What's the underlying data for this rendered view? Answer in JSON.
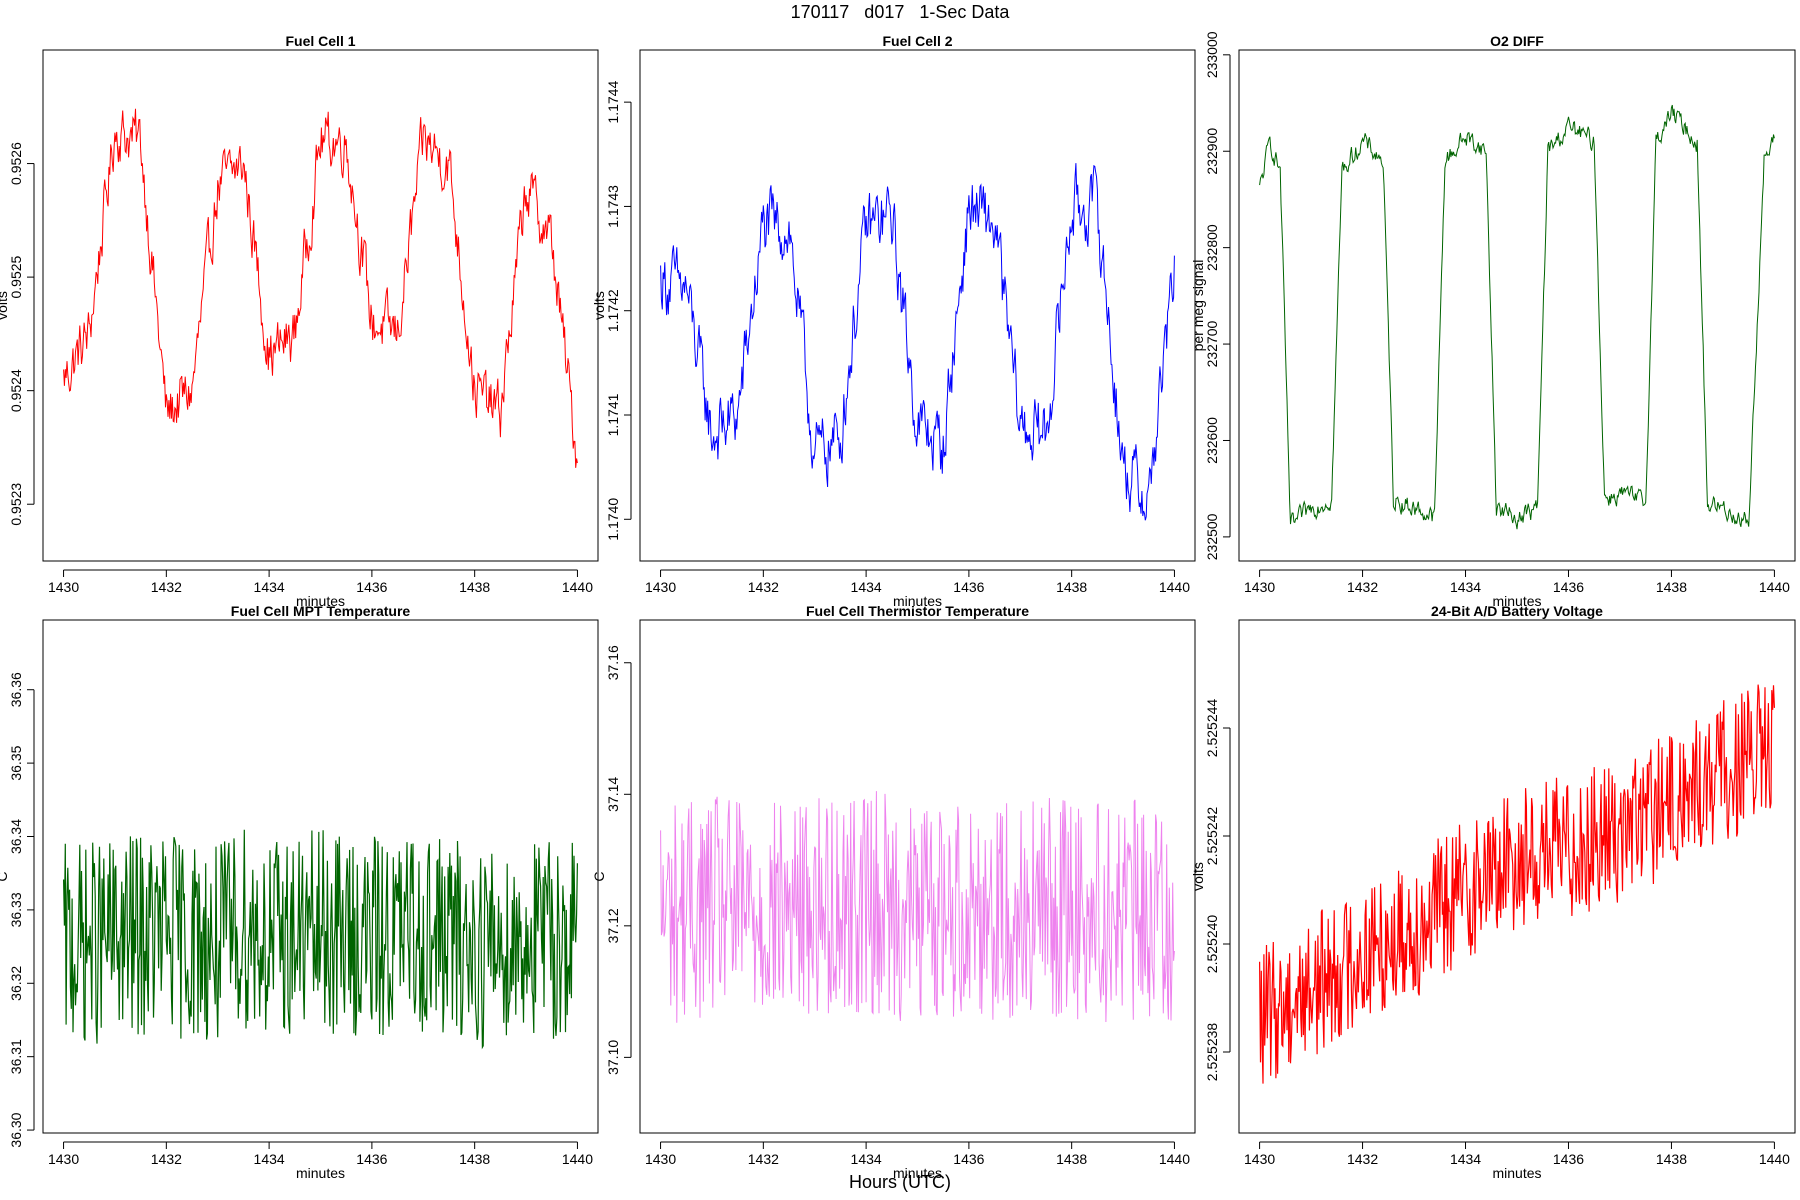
{
  "page": {
    "title": "170117   d017   1-Sec Data",
    "bottom_label": "Hours (UTC)"
  },
  "chart_data": [
    {
      "id": "fuel-cell-1",
      "type": "line",
      "title": "Fuel Cell 1",
      "xlabel": "minutes",
      "ylabel": "volts",
      "color": "#ff0000",
      "xlim": [
        1429.6,
        1440.4
      ],
      "ylim": [
        0.95225,
        0.9527
      ],
      "xticks": [
        1430,
        1432,
        1434,
        1436,
        1438,
        1440
      ],
      "yticks": [
        0.9523,
        0.9524,
        0.9525,
        0.9526
      ],
      "ytick_labels": [
        "0.9523",
        "0.9524",
        "0.9525",
        "0.9526"
      ],
      "x": [
        1430.0,
        1430.5,
        1431.0,
        1431.5,
        1432.0,
        1432.5,
        1433.0,
        1433.5,
        1434.0,
        1434.5,
        1435.0,
        1435.5,
        1436.0,
        1436.5,
        1437.0,
        1437.5,
        1438.0,
        1438.5,
        1439.0,
        1439.5,
        1440.0
      ],
      "y": [
        0.95241,
        0.95245,
        0.95263,
        0.95262,
        0.95238,
        0.9524,
        0.95258,
        0.9526,
        0.95243,
        0.95245,
        0.95262,
        0.95262,
        0.95246,
        0.95245,
        0.95262,
        0.9526,
        0.9524,
        0.95238,
        0.95258,
        0.95253,
        0.95234
      ]
    },
    {
      "id": "fuel-cell-2",
      "type": "line",
      "title": "Fuel Cell 2",
      "xlabel": "minutes",
      "ylabel": "volts",
      "color": "#0000ff",
      "xlim": [
        1429.6,
        1440.4
      ],
      "ylim": [
        1.17396,
        1.17445
      ],
      "xticks": [
        1430,
        1432,
        1434,
        1436,
        1438,
        1440
      ],
      "yticks": [
        1.174,
        1.1741,
        1.1742,
        1.1743,
        1.1744
      ],
      "ytick_labels": [
        "1.1740",
        "1.1741",
        "1.1742",
        "1.1743",
        "1.1744"
      ],
      "x": [
        1430.0,
        1430.5,
        1431.0,
        1431.5,
        1432.0,
        1432.5,
        1433.0,
        1433.5,
        1434.0,
        1434.5,
        1435.0,
        1435.5,
        1436.0,
        1436.5,
        1437.0,
        1437.5,
        1438.0,
        1438.5,
        1439.0,
        1439.5,
        1440.0
      ],
      "y": [
        1.17423,
        1.17422,
        1.17408,
        1.1741,
        1.17428,
        1.17428,
        1.17406,
        1.17408,
        1.17428,
        1.17429,
        1.17409,
        1.17407,
        1.1743,
        1.17428,
        1.17409,
        1.17408,
        1.1743,
        1.1743,
        1.17405,
        1.17402,
        1.17424
      ]
    },
    {
      "id": "o2-diff",
      "type": "line",
      "title": "O2 DIFF",
      "xlabel": "minutes",
      "ylabel": "per meg signal",
      "color": "#006400",
      "xlim": [
        1429.6,
        1440.4
      ],
      "ylim": [
        232475,
        233005
      ],
      "xticks": [
        1430,
        1432,
        1434,
        1436,
        1438,
        1440
      ],
      "yticks": [
        232500,
        232600,
        232700,
        232800,
        232900,
        233000
      ],
      "ytick_labels": [
        "232500",
        "232600",
        "232700",
        "232800",
        "232900",
        "233000"
      ],
      "x": [
        1430.0,
        1430.2,
        1430.4,
        1430.6,
        1431.0,
        1431.4,
        1431.6,
        1432.0,
        1432.4,
        1432.6,
        1433.0,
        1433.4,
        1433.6,
        1434.0,
        1434.4,
        1434.6,
        1435.0,
        1435.4,
        1435.6,
        1436.0,
        1436.5,
        1436.7,
        1437.0,
        1437.5,
        1437.7,
        1438.0,
        1438.5,
        1438.7,
        1439.0,
        1439.5,
        1439.8,
        1440.0
      ],
      "y": [
        232860,
        232910,
        232880,
        232510,
        232530,
        232540,
        232880,
        232910,
        232890,
        232540,
        232530,
        232520,
        232890,
        232915,
        232900,
        232530,
        232520,
        232530,
        232900,
        232925,
        232910,
        232540,
        232545,
        232535,
        232910,
        232940,
        232910,
        232535,
        232530,
        232515,
        232890,
        232910
      ]
    },
    {
      "id": "fuel-cell-mpt-temperature",
      "type": "line",
      "title": "Fuel Cell MPT Temperature",
      "xlabel": "minutes",
      "ylabel": "C",
      "color": "#006400",
      "xlim": [
        1429.6,
        1440.4
      ],
      "ylim": [
        36.2996,
        36.3695
      ],
      "xticks": [
        1430,
        1432,
        1434,
        1436,
        1438,
        1440
      ],
      "yticks": [
        36.3,
        36.31,
        36.32,
        36.33,
        36.34,
        36.35,
        36.36
      ],
      "ytick_labels": [
        "36.30",
        "36.31",
        "36.32",
        "36.33",
        "36.34",
        "36.35",
        "36.36"
      ],
      "x": [
        1430.0,
        1431.0,
        1432.0,
        1433.0,
        1433.5,
        1434.0,
        1435.0,
        1436.0,
        1437.0,
        1438.0,
        1439.0,
        1440.0
      ],
      "y": [
        36.325,
        36.326,
        36.327,
        36.325,
        36.328,
        36.326,
        36.327,
        36.326,
        36.327,
        36.325,
        36.326,
        36.326
      ]
    },
    {
      "id": "fuel-cell-thermistor-temperature",
      "type": "line",
      "title": "Fuel Cell Thermistor Temperature",
      "xlabel": "minutes",
      "ylabel": "C",
      "color": "#ee82ee",
      "xlim": [
        1429.6,
        1440.4
      ],
      "ylim": [
        37.0885,
        37.1665
      ],
      "xticks": [
        1430,
        1432,
        1434,
        1436,
        1438,
        1440
      ],
      "yticks": [
        37.1,
        37.12,
        37.14,
        37.16
      ],
      "ytick_labels": [
        "37.10",
        "37.12",
        "37.14",
        "37.16"
      ],
      "x": [
        1430.0,
        1431.0,
        1432.0,
        1433.0,
        1434.0,
        1435.0,
        1436.0,
        1437.0,
        1438.0,
        1439.0,
        1440.0
      ],
      "y": [
        37.122,
        37.123,
        37.122,
        37.123,
        37.124,
        37.122,
        37.123,
        37.122,
        37.123,
        37.122,
        37.122
      ]
    },
    {
      "id": "battery-voltage-24bit",
      "type": "line",
      "title": "24-Bit A/D Battery Voltage",
      "xlabel": "minutes",
      "ylabel": "volts",
      "color": "#ff0000",
      "xlim": [
        1429.6,
        1440.4
      ],
      "ylim": [
        2.5252365,
        2.525246
      ],
      "xticks": [
        1430,
        1432,
        1434,
        1436,
        1438,
        1440
      ],
      "yticks": [
        2.525238,
        2.52524,
        2.525242,
        2.525244
      ],
      "ytick_labels": [
        "2.525238",
        "2.525240",
        "2.525242",
        "2.525244"
      ],
      "x": [
        1430.0,
        1431.0,
        1432.0,
        1433.0,
        1434.0,
        1435.0,
        1436.0,
        1437.0,
        1438.0,
        1439.0,
        1440.0
      ],
      "y": [
        2.5252386,
        2.5252392,
        2.5252398,
        2.5252403,
        2.525241,
        2.5252416,
        2.5252418,
        2.5252421,
        2.5252426,
        2.5252432,
        2.5252436
      ]
    }
  ]
}
